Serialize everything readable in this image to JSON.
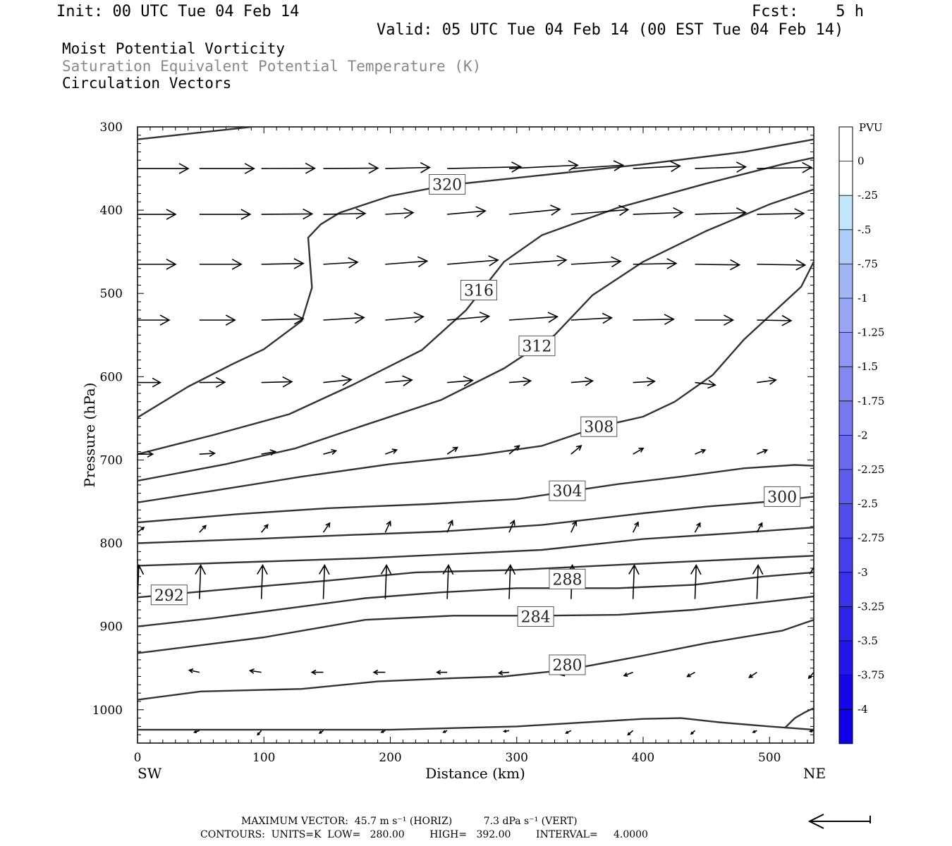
{
  "header": {
    "init": "Init: 00 UTC Tue 04 Feb 14",
    "fcst": "Fcst:    5 h",
    "valid": "Valid: 05 UTC Tue 04 Feb 14 (00 EST Tue 04 Feb 14)"
  },
  "titles": {
    "line1": "Moist Potential Vorticity",
    "line2": "Saturation Equivalent Potential Temperature (K)",
    "line3": "Circulation Vectors"
  },
  "colors": {
    "contour": "#333333",
    "vector": "#000000",
    "title2": "#888888"
  },
  "footer": {
    "max_vector": "MAXIMUM VECTOR:  45.7 m s⁻¹ (HORIZ)          7.3 dPa s⁻¹ (VERT)",
    "contours": "CONTOURS:  UNITS=K  LOW=   280.00        HIGH=   392.00        INTERVAL=     4.0000"
  },
  "chart_data": {
    "type": "cross-section",
    "xlabel": "Distance (km)",
    "ylabel": "Pressure (hPa)",
    "x_left_label": "SW",
    "x_right_label": "NE",
    "xlim": [
      0,
      535
    ],
    "ylim": [
      1040,
      300
    ],
    "y_scale": "linear, inverted",
    "x_ticks": [
      0,
      100,
      200,
      300,
      400,
      500
    ],
    "y_ticks": [
      300,
      400,
      500,
      600,
      700,
      800,
      900,
      1000
    ],
    "colorbar": {
      "title": "PVU",
      "levels": [
        "0",
        "-.25",
        "-.5",
        "-.75",
        "-1",
        "-1.25",
        "-1.5",
        "-1.75",
        "-2",
        "-2.25",
        "-2.5",
        "-2.75",
        "-3",
        "-3.25",
        "-3.5",
        "-3.75",
        "-4"
      ],
      "colors": [
        "#ffffff",
        "#ffffff",
        "#c2e6fb",
        "#b0ccf8",
        "#a2b6f6",
        "#98a6f3",
        "#8e97f2",
        "#8389f1",
        "#7778ef",
        "#6b6aee",
        "#5f5ced",
        "#524cec",
        "#463eea",
        "#3a31ea",
        "#2d22e8",
        "#2116e7",
        "#1508e6",
        "#0d00e6"
      ]
    },
    "contours": [
      {
        "label": "",
        "points": [
          [
            0,
            315
          ],
          [
            90,
            300
          ]
        ]
      },
      {
        "label": "320",
        "label_at": [
          245,
          369
        ],
        "points": [
          [
            0,
            649
          ],
          [
            40,
            612
          ],
          [
            75,
            585
          ],
          [
            100,
            567
          ],
          [
            130,
            533
          ],
          [
            138,
            493
          ],
          [
            135,
            433
          ],
          [
            145,
            417
          ],
          [
            160,
            403
          ],
          [
            200,
            383
          ],
          [
            245,
            370
          ],
          [
            320,
            358
          ],
          [
            400,
            345
          ],
          [
            480,
            330
          ],
          [
            535,
            315
          ]
        ]
      },
      {
        "label": "316",
        "label_at": [
          270,
          496
        ],
        "points": [
          [
            0,
            693
          ],
          [
            60,
            670
          ],
          [
            120,
            645
          ],
          [
            170,
            610
          ],
          [
            225,
            568
          ],
          [
            260,
            520
          ],
          [
            290,
            462
          ],
          [
            320,
            430
          ],
          [
            380,
            397
          ],
          [
            450,
            368
          ],
          [
            510,
            345
          ],
          [
            535,
            337
          ]
        ]
      },
      {
        "label": "312",
        "label_at": [
          316,
          563
        ],
        "points": [
          [
            0,
            725
          ],
          [
            70,
            705
          ],
          [
            125,
            686
          ],
          [
            180,
            658
          ],
          [
            240,
            628
          ],
          [
            290,
            590
          ],
          [
            330,
            550
          ],
          [
            360,
            502
          ],
          [
            400,
            462
          ],
          [
            450,
            425
          ],
          [
            500,
            393
          ],
          [
            535,
            375
          ]
        ]
      },
      {
        "label": "308",
        "label_at": [
          365,
          660
        ],
        "points": [
          [
            0,
            751
          ],
          [
            60,
            737
          ],
          [
            130,
            720
          ],
          [
            200,
            705
          ],
          [
            270,
            694
          ],
          [
            320,
            683
          ],
          [
            365,
            660
          ],
          [
            400,
            648
          ],
          [
            425,
            630
          ],
          [
            455,
            598
          ],
          [
            480,
            555
          ],
          [
            500,
            527
          ],
          [
            525,
            492
          ],
          [
            535,
            462
          ]
        ]
      },
      {
        "label": "304",
        "label_at": [
          340,
          737
        ],
        "points": [
          [
            0,
            775
          ],
          [
            80,
            765
          ],
          [
            150,
            758
          ],
          [
            230,
            753
          ],
          [
            300,
            747
          ],
          [
            380,
            729
          ],
          [
            430,
            720
          ],
          [
            480,
            710
          ],
          [
            520,
            706
          ],
          [
            535,
            707
          ]
        ]
      },
      {
        "label": "300",
        "label_at": [
          510,
          744
        ],
        "points": [
          [
            0,
            800
          ],
          [
            90,
            795
          ],
          [
            170,
            790
          ],
          [
            240,
            786
          ],
          [
            320,
            778
          ],
          [
            400,
            764
          ],
          [
            450,
            756
          ],
          [
            500,
            750
          ],
          [
            535,
            744
          ]
        ]
      },
      {
        "label": "",
        "points": [
          [
            0,
            827
          ],
          [
            100,
            822
          ],
          [
            180,
            818
          ],
          [
            250,
            813
          ],
          [
            320,
            808
          ],
          [
            400,
            795
          ],
          [
            470,
            788
          ],
          [
            535,
            781
          ]
        ]
      },
      {
        "label": "292",
        "label_at": [
          25,
          862
        ],
        "points": [
          [
            0,
            865
          ],
          [
            80,
            854
          ],
          [
            150,
            845
          ],
          [
            220,
            835
          ],
          [
            300,
            832
          ],
          [
            380,
            826
          ],
          [
            450,
            821
          ],
          [
            535,
            815
          ]
        ]
      },
      {
        "label": "288",
        "label_at": [
          340,
          843
        ],
        "points": [
          [
            0,
            900
          ],
          [
            60,
            890
          ],
          [
            120,
            878
          ],
          [
            180,
            866
          ],
          [
            240,
            859
          ],
          [
            300,
            854
          ],
          [
            380,
            854
          ],
          [
            440,
            850
          ],
          [
            495,
            840
          ],
          [
            535,
            835
          ]
        ]
      },
      {
        "label": "284",
        "label_at": [
          315,
          888
        ],
        "points": [
          [
            0,
            932
          ],
          [
            100,
            913
          ],
          [
            180,
            892
          ],
          [
            250,
            887
          ],
          [
            320,
            887
          ],
          [
            380,
            886
          ],
          [
            440,
            880
          ],
          [
            500,
            870
          ],
          [
            535,
            864
          ]
        ]
      },
      {
        "label": "280",
        "label_at": [
          340,
          946
        ],
        "points": [
          [
            0,
            988
          ],
          [
            50,
            978
          ],
          [
            130,
            975
          ],
          [
            190,
            966
          ],
          [
            250,
            962
          ],
          [
            290,
            960
          ],
          [
            340,
            952
          ],
          [
            400,
            935
          ],
          [
            450,
            920
          ],
          [
            510,
            905
          ],
          [
            535,
            892
          ]
        ]
      },
      {
        "label": "",
        "points": [
          [
            0,
            1024
          ],
          [
            200,
            1024
          ],
          [
            300,
            1020
          ],
          [
            400,
            1011
          ],
          [
            430,
            1010
          ],
          [
            460,
            1015
          ],
          [
            500,
            1020
          ],
          [
            535,
            1024
          ]
        ]
      },
      {
        "label": "",
        "points": [
          [
            512,
            1022
          ],
          [
            520,
            1010
          ],
          [
            528,
            1003
          ],
          [
            535,
            998
          ]
        ]
      }
    ],
    "vectors": [
      {
        "y": 350,
        "u": [
          40,
          43,
          42,
          43,
          35,
          58,
          54,
          41,
          37,
          40,
          43,
          50
        ],
        "w": [
          0,
          0,
          -0.03,
          -0.05,
          -0.13,
          -0.2,
          -0.4,
          -0.4,
          -0.3,
          -0.2,
          -0.13,
          0.05
        ]
      },
      {
        "y": 405,
        "u": [
          30,
          40,
          40,
          33,
          22,
          30,
          40,
          45,
          39,
          40,
          37,
          32
        ],
        "w": [
          0,
          0,
          -0.05,
          -0.1,
          -0.2,
          -0.4,
          -0.6,
          -0.55,
          -0.22,
          -0.2,
          -0.1,
          0
        ]
      },
      {
        "y": 465,
        "u": [
          30,
          33,
          33,
          27,
          33,
          40,
          45,
          39,
          34,
          35,
          38,
          33
        ],
        "w": [
          0,
          0,
          -0.1,
          -0.25,
          -0.38,
          -0.5,
          -0.5,
          -0.35,
          -0.1,
          0.07,
          0.09,
          0
        ]
      },
      {
        "y": 532,
        "u": [
          25,
          28,
          33,
          32,
          30,
          33,
          38,
          32,
          32,
          30,
          27,
          22
        ],
        "w": [
          0,
          0,
          -0.15,
          -0.3,
          -0.4,
          -0.45,
          -0.4,
          -0.27,
          -0.1,
          0,
          0.07,
          -0.1
        ]
      },
      {
        "y": 607,
        "u": [
          18,
          20,
          24,
          22,
          21,
          20,
          17,
          17,
          17,
          16,
          15,
          14
        ],
        "w": [
          0,
          -0.03,
          -0.1,
          -0.35,
          -0.3,
          -0.25,
          -0.2,
          -0.2,
          -0.15,
          0.3,
          -0.3,
          -0.4
        ]
      },
      {
        "y": 693,
        "u": [
          12,
          12,
          11,
          10,
          9,
          8,
          8,
          8,
          8,
          8,
          8,
          8
        ],
        "w": [
          0,
          -0.1,
          -0.3,
          -0.4,
          -0.5,
          -0.8,
          -1,
          -1,
          -0.7,
          -0.5,
          -0.5,
          -0.6
        ]
      },
      {
        "y": 787,
        "u": [
          5,
          5,
          5,
          5,
          4,
          4,
          4,
          4,
          4,
          4,
          4,
          4
        ],
        "w": [
          -0.6,
          -0.8,
          -0.9,
          -1.1,
          -1.3,
          -1.4,
          -1.4,
          -1.3,
          -1.2,
          -1.1,
          -1.1,
          -1.2
        ]
      },
      {
        "y": 867,
        "u": [
          1,
          1,
          1,
          1,
          1,
          1,
          1,
          1,
          1,
          1,
          1,
          1
        ],
        "w": [
          -4,
          -4,
          -4,
          -4,
          -4,
          -4,
          -4,
          -4,
          -4,
          -4,
          -4,
          -4
        ]
      },
      {
        "y": 955,
        "u": [
          -7,
          -8,
          -9,
          -9,
          -9,
          -8,
          -8,
          -8,
          -7,
          -6,
          -6,
          -4
        ],
        "w": [
          -0.3,
          -0.25,
          -0.2,
          0,
          0,
          0,
          0.1,
          0.3,
          0.4,
          0.5,
          0.6,
          0.7
        ]
      },
      {
        "y": 1025,
        "u": [
          -5,
          -4,
          -3,
          -3,
          -3,
          -3,
          -4,
          -4,
          -4,
          -3,
          -3,
          -3
        ],
        "w": [
          0,
          0.2,
          0.5,
          0.3,
          0.2,
          0.2,
          0.1,
          0.3,
          0.5,
          0.4,
          0.2,
          0.1
        ]
      }
    ],
    "vector_x_km": [
      0,
      49,
      98,
      147,
      196,
      245,
      294,
      343,
      392,
      441,
      490,
      535
    ]
  }
}
